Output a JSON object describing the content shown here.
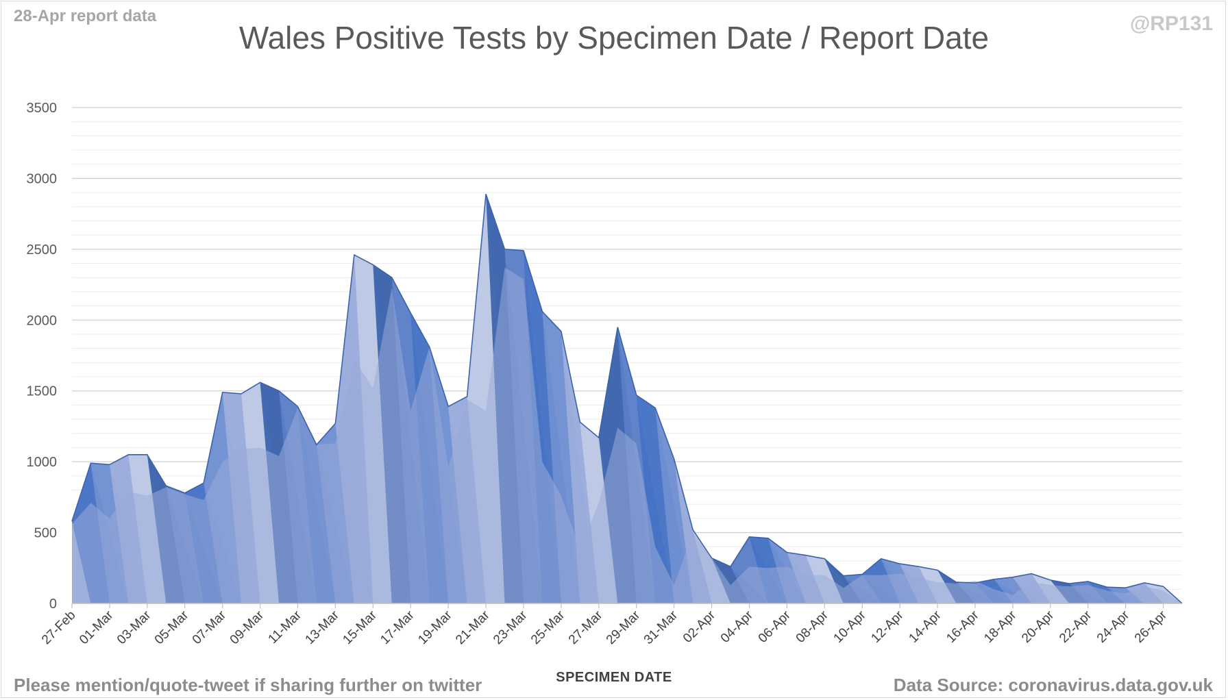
{
  "header": {
    "report_label": "28-Apr report data",
    "handle": "@RP131"
  },
  "footer": {
    "left": "Please mention/quote-tweet if sharing further on twitter",
    "right": "Data Source: coronavirus.data.gov.uk"
  },
  "colors": [
    "#4472c4",
    "#7090d0",
    "#9daedb",
    "#c0cbe6",
    "#3a62ab",
    "#5a7fc8"
  ],
  "chart_data": {
    "type": "area",
    "title": "Wales Positive Tests by Specimen Date / Report Date",
    "xlabel": "SPECIMEN DATE",
    "ylabel": "",
    "ylim": [
      0,
      3500
    ],
    "yticks": [
      0,
      500,
      1000,
      1500,
      2000,
      2500,
      3000,
      3500
    ],
    "grid": "horizontal major and minor gridlines",
    "x_range": [
      "27-Feb",
      "27-Apr"
    ],
    "x_ticks": [
      "27-Feb",
      "01-Mar",
      "03-Mar",
      "05-Mar",
      "07-Mar",
      "09-Mar",
      "11-Mar",
      "13-Mar",
      "15-Mar",
      "17-Mar",
      "19-Mar",
      "21-Mar",
      "23-Mar",
      "25-Mar",
      "27-Mar",
      "29-Mar",
      "31-Mar",
      "02-Apr",
      "04-Apr",
      "06-Apr",
      "08-Apr",
      "10-Apr",
      "12-Apr",
      "14-Apr",
      "16-Apr",
      "18-Apr",
      "20-Apr",
      "22-Apr",
      "24-Apr",
      "26-Apr"
    ],
    "series": [
      {
        "values": [
          580,
          990,
          980,
          1050,
          1050,
          830,
          780,
          850,
          1490,
          1480,
          1560,
          1500,
          1390,
          1120,
          1270,
          2460,
          2390,
          2300,
          2050,
          1810,
          1390,
          1460,
          2890,
          2500,
          2490,
          2060,
          1920,
          1280,
          1170,
          1950,
          1470,
          1380,
          1020,
          520,
          320,
          260,
          470,
          460,
          360,
          340,
          315,
          195,
          205,
          315,
          280,
          260,
          235,
          150,
          145,
          170,
          185,
          210,
          165,
          140,
          155,
          115,
          110,
          145,
          120,
          0
        ]
      },
      {
        "values": [
          580,
          990,
          970,
          1050,
          1050,
          830,
          780,
          850,
          1490,
          1470,
          1550,
          1500,
          1380,
          1120,
          1270,
          2450,
          2380,
          2290,
          2040,
          1810,
          1380,
          1450,
          2880,
          2490,
          2470,
          2050,
          1910,
          1270,
          1160,
          1940,
          1460,
          1370,
          1010,
          510,
          310,
          250,
          460,
          450,
          350,
          330,
          305,
          185,
          195,
          305,
          270,
          250,
          225,
          140,
          135,
          160,
          175,
          200,
          155,
          130,
          145,
          105,
          100,
          135,
          110,
          0
        ]
      },
      {
        "values": [
          560,
          710,
          600,
          790,
          760,
          820,
          770,
          730,
          1000,
          1090,
          1100,
          1040,
          1380,
          1120,
          1130,
          1720,
          1520,
          2230,
          1360,
          1810,
          960,
          1440,
          1360,
          2370,
          2290,
          1000,
          760,
          380,
          710,
          1240,
          1130,
          400,
          130,
          500,
          320,
          130,
          260,
          250,
          260,
          200,
          200,
          110,
          200,
          200,
          210,
          180,
          150,
          140,
          160,
          100,
          60,
          150,
          130,
          120,
          130,
          90,
          70,
          120,
          90,
          0
        ]
      }
    ]
  }
}
